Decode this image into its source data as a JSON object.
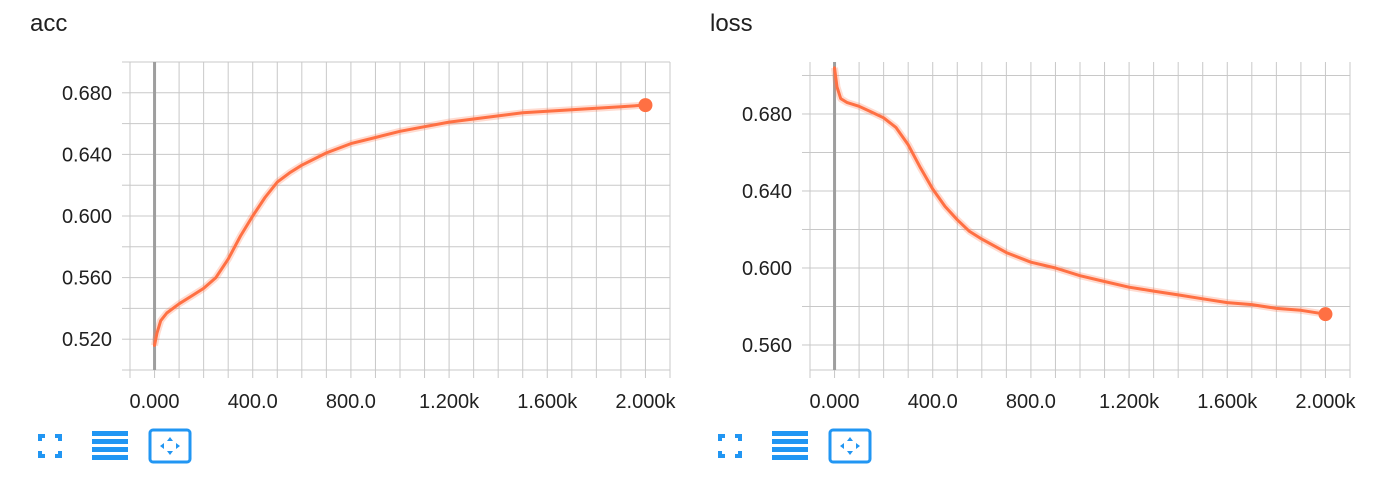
{
  "colors": {
    "series": "#ff7043",
    "grid": "#c8c8c8",
    "axis": "#9e9e9e",
    "icon": "#2196f3"
  },
  "toolbar_icons": [
    "fullscreen-icon",
    "list-icon",
    "fit-domain-icon"
  ],
  "chart_data": [
    {
      "type": "line",
      "title": "acc",
      "xlabel": "",
      "ylabel": "",
      "xlim": [
        -100,
        2100
      ],
      "ylim": [
        0.5,
        0.7
      ],
      "x_ticks": [
        0,
        400,
        800,
        1200,
        1600,
        2000
      ],
      "x_tick_labels": [
        "0.000",
        "400.0",
        "800.0",
        "1.200k",
        "1.600k",
        "2.000k"
      ],
      "y_ticks": [
        0.52,
        0.56,
        0.6,
        0.64,
        0.68
      ],
      "y_tick_labels": [
        "0.520",
        "0.560",
        "0.600",
        "0.640",
        "0.680"
      ],
      "grid": true,
      "series": [
        {
          "x": [
            0,
            10,
            25,
            50,
            100,
            150,
            200,
            250,
            300,
            350,
            400,
            450,
            500,
            550,
            600,
            700,
            800,
            900,
            1000,
            1100,
            1200,
            1300,
            1400,
            1500,
            1600,
            1700,
            1800,
            1900,
            2000
          ],
          "values": [
            0.516,
            0.524,
            0.532,
            0.537,
            0.543,
            0.548,
            0.553,
            0.56,
            0.572,
            0.587,
            0.6,
            0.612,
            0.622,
            0.628,
            0.633,
            0.641,
            0.647,
            0.651,
            0.655,
            0.658,
            0.661,
            0.663,
            0.665,
            0.667,
            0.668,
            0.669,
            0.67,
            0.671,
            0.672
          ]
        }
      ]
    },
    {
      "type": "line",
      "title": "loss",
      "xlabel": "",
      "ylabel": "",
      "xlim": [
        -100,
        2100
      ],
      "ylim": [
        0.547,
        0.707
      ],
      "x_ticks": [
        0,
        400,
        800,
        1200,
        1600,
        2000
      ],
      "x_tick_labels": [
        "0.000",
        "400.0",
        "800.0",
        "1.200k",
        "1.600k",
        "2.000k"
      ],
      "y_ticks": [
        0.56,
        0.6,
        0.64,
        0.68
      ],
      "y_tick_labels": [
        "0.560",
        "0.600",
        "0.640",
        "0.680"
      ],
      "grid": true,
      "series": [
        {
          "x": [
            0,
            10,
            25,
            50,
            100,
            150,
            200,
            250,
            300,
            350,
            400,
            450,
            500,
            550,
            600,
            700,
            800,
            900,
            1000,
            1100,
            1200,
            1300,
            1400,
            1500,
            1600,
            1700,
            1800,
            1900,
            2000
          ],
          "values": [
            0.704,
            0.694,
            0.688,
            0.686,
            0.684,
            0.681,
            0.678,
            0.673,
            0.664,
            0.652,
            0.641,
            0.632,
            0.625,
            0.619,
            0.615,
            0.608,
            0.603,
            0.6,
            0.596,
            0.593,
            0.59,
            0.588,
            0.586,
            0.584,
            0.582,
            0.581,
            0.579,
            0.578,
            0.576
          ]
        }
      ]
    }
  ]
}
